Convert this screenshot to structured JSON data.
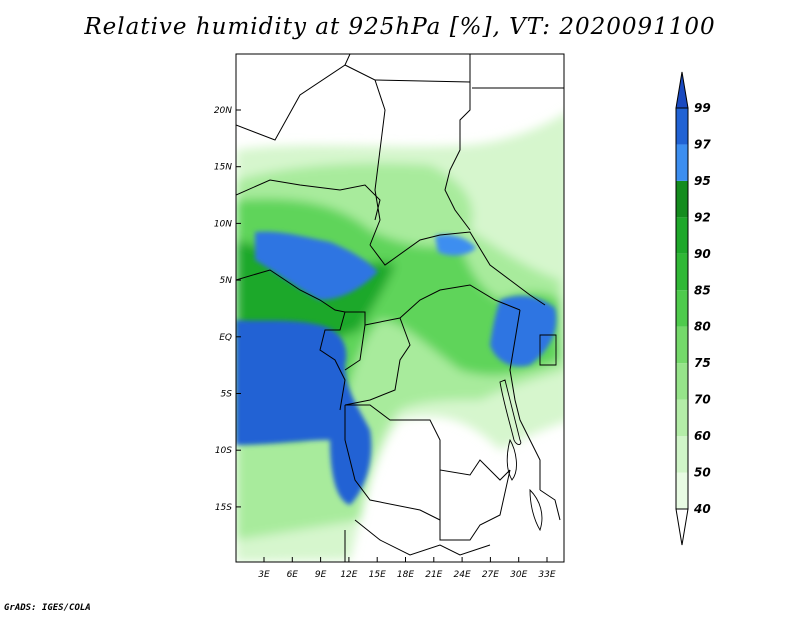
{
  "title": "Relative humidity at 925hPa [%], VT: 2020091100",
  "credit": "GrADS: IGES/COLA",
  "map": {
    "lat_labels": [
      "20N",
      "15N",
      "10N",
      "5N",
      "EQ",
      "5S",
      "10S",
      "15S"
    ],
    "lon_labels": [
      "3E",
      "6E",
      "9E",
      "12E",
      "15E",
      "18E",
      "21E",
      "24E",
      "27E",
      "30E",
      "33E"
    ]
  },
  "colorbar": {
    "levels": [
      "40",
      "50",
      "60",
      "70",
      "75",
      "80",
      "85",
      "90",
      "92",
      "95",
      "97",
      "99"
    ],
    "colors": [
      "#ffffff",
      "#e8fbe3",
      "#d0f5c8",
      "#b4eda8",
      "#96e48a",
      "#74d96a",
      "#4ecb4c",
      "#30b836",
      "#1ea82a",
      "#148c1e",
      "#3c8ef0",
      "#2062d4",
      "#1a4ac0"
    ]
  }
}
